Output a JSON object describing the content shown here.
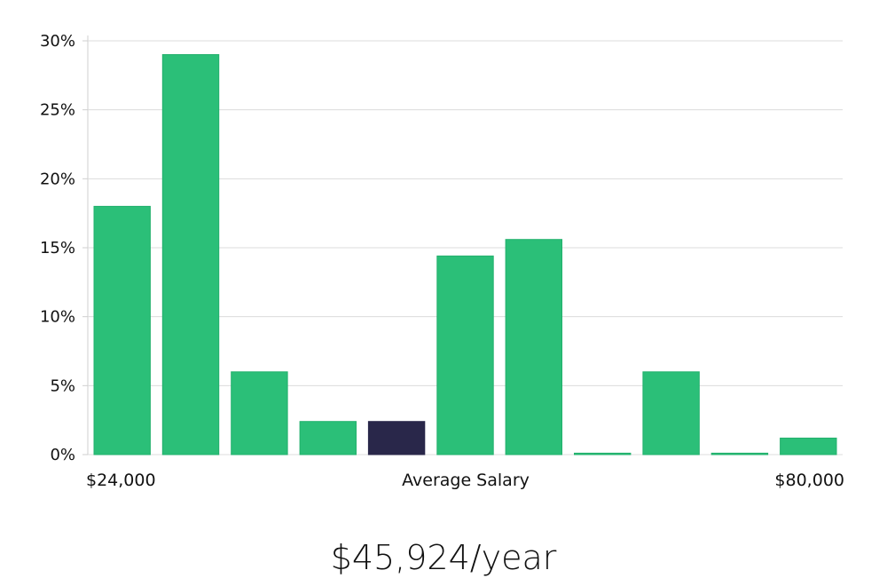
{
  "chart_data": {
    "type": "bar",
    "title": "",
    "xlabel": "Average Salary",
    "ylabel": "",
    "x_range_labels": {
      "min": "$24,000",
      "max": "$80,000"
    },
    "ylim": [
      0,
      30
    ],
    "y_ticks": [
      0,
      5,
      10,
      15,
      20,
      25,
      30
    ],
    "y_tick_labels": [
      "0%",
      "5%",
      "10%",
      "15%",
      "20%",
      "25%",
      "30%"
    ],
    "values": [
      18.0,
      29.0,
      6.0,
      2.4,
      2.4,
      14.4,
      15.6,
      0.1,
      6.0,
      0.1,
      1.2
    ],
    "highlight_index": 4,
    "grid": true,
    "colors": {
      "bar": "#2bbf78",
      "bar_edge": "#22b06c",
      "highlight": "#29274a",
      "grid": "#dcdcdc",
      "axis": "#cfcfcf"
    }
  },
  "salary_summary": "$45,924/year"
}
